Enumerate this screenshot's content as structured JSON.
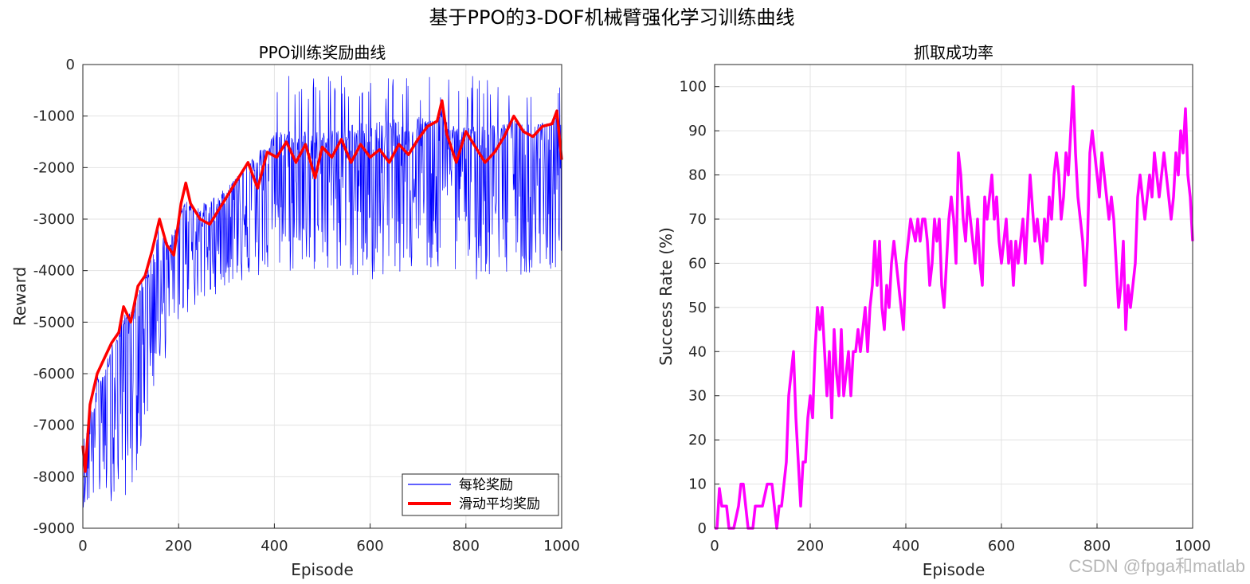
{
  "figure": {
    "title": "基于PPO的3-DOF机械臂强化学习训练曲线",
    "watermark": "CSDN @fpga和matlab"
  },
  "chart_data": [
    {
      "type": "line",
      "title": "PPO训练奖励曲线",
      "xlabel": "Episode",
      "ylabel": "Reward",
      "xlim": [
        0,
        1000
      ],
      "ylim": [
        -9000,
        0
      ],
      "xticks": [
        0,
        200,
        400,
        600,
        800,
        1000
      ],
      "yticks": [
        0,
        -1000,
        -2000,
        -3000,
        -4000,
        -5000,
        -6000,
        -7000,
        -8000,
        -9000
      ],
      "grid": true,
      "legend_position": "bottom-right",
      "series": [
        {
          "name": "每轮奖励",
          "color": "#0000ff",
          "style": "thin",
          "episodes": 1000,
          "noisy_around_trend_envelope": [
            [
              0,
              -7300,
              -8600
            ],
            [
              100,
              -4700,
              -8400
            ],
            [
              150,
              -4000,
              -6300
            ],
            [
              200,
              -3000,
              -5000
            ],
            [
              300,
              -2400,
              -4300
            ],
            [
              400,
              -1300,
              -4100
            ],
            [
              500,
              -1300,
              -4000
            ],
            [
              600,
              -1100,
              -4200
            ],
            [
              700,
              -1000,
              -4000
            ],
            [
              800,
              -1200,
              -4200
            ],
            [
              1000,
              -1100,
              -4000
            ]
          ]
        },
        {
          "name": "滑动平均奖励",
          "color": "#ff0000",
          "style": "thick",
          "x": [
            0,
            5,
            15,
            30,
            45,
            60,
            75,
            85,
            100,
            115,
            130,
            145,
            160,
            175,
            190,
            205,
            215,
            225,
            245,
            265,
            285,
            305,
            325,
            345,
            365,
            385,
            405,
            425,
            445,
            465,
            485,
            500,
            520,
            540,
            560,
            580,
            600,
            620,
            640,
            660,
            680,
            700,
            720,
            740,
            750,
            760,
            780,
            800,
            820,
            840,
            860,
            880,
            900,
            920,
            940,
            960,
            980,
            990,
            1000
          ],
          "y": [
            -7400,
            -7900,
            -6600,
            -6000,
            -5700,
            -5400,
            -5200,
            -4700,
            -5000,
            -4300,
            -4100,
            -3600,
            -3000,
            -3500,
            -3700,
            -2700,
            -2300,
            -2700,
            -3000,
            -3100,
            -2800,
            -2500,
            -2200,
            -1900,
            -2400,
            -1700,
            -1800,
            -1500,
            -1900,
            -1550,
            -2200,
            -1600,
            -1800,
            -1450,
            -1900,
            -1550,
            -1800,
            -1650,
            -1900,
            -1550,
            -1750,
            -1450,
            -1200,
            -1100,
            -700,
            -1350,
            -1900,
            -1300,
            -1600,
            -1900,
            -1700,
            -1400,
            -1000,
            -1300,
            -1400,
            -1200,
            -1150,
            -900,
            -1850
          ]
        }
      ]
    },
    {
      "type": "line",
      "title": "抓取成功率",
      "xlabel": "Episode",
      "ylabel": "Success Rate (%)",
      "xlim": [
        0,
        1000
      ],
      "ylim": [
        0,
        105
      ],
      "xticks": [
        0,
        200,
        400,
        600,
        800,
        1000
      ],
      "yticks": [
        0,
        10,
        20,
        30,
        40,
        50,
        60,
        70,
        80,
        90,
        100
      ],
      "grid": true,
      "series": [
        {
          "color": "#ff00ff",
          "style": "thick",
          "x": [
            0,
            5,
            10,
            15,
            25,
            30,
            40,
            50,
            55,
            60,
            65,
            70,
            80,
            85,
            90,
            100,
            110,
            120,
            125,
            130,
            135,
            140,
            150,
            155,
            160,
            165,
            170,
            175,
            180,
            185,
            190,
            195,
            200,
            205,
            210,
            215,
            220,
            225,
            230,
            235,
            240,
            245,
            250,
            255,
            260,
            265,
            270,
            275,
            280,
            285,
            290,
            295,
            300,
            305,
            310,
            315,
            320,
            325,
            330,
            335,
            340,
            345,
            350,
            355,
            360,
            365,
            370,
            375,
            380,
            385,
            390,
            395,
            400,
            410,
            420,
            425,
            430,
            435,
            440,
            445,
            450,
            455,
            460,
            465,
            470,
            475,
            480,
            485,
            490,
            495,
            500,
            505,
            510,
            515,
            520,
            525,
            530,
            535,
            540,
            545,
            550,
            555,
            560,
            565,
            570,
            575,
            580,
            585,
            590,
            595,
            600,
            605,
            610,
            615,
            620,
            625,
            630,
            635,
            640,
            645,
            650,
            660,
            670,
            675,
            680,
            685,
            690,
            695,
            700,
            705,
            710,
            715,
            720,
            725,
            730,
            735,
            740,
            745,
            750,
            755,
            760,
            765,
            770,
            775,
            780,
            785,
            790,
            795,
            800,
            805,
            810,
            815,
            820,
            825,
            830,
            835,
            840,
            845,
            850,
            855,
            860,
            865,
            870,
            875,
            880,
            885,
            890,
            895,
            900,
            905,
            910,
            915,
            920,
            925,
            930,
            935,
            940,
            945,
            950,
            955,
            960,
            965,
            970,
            975,
            980,
            985,
            990,
            995,
            1000
          ],
          "y": [
            0,
            0,
            9,
            5,
            5,
            0,
            0,
            5,
            10,
            10,
            5,
            0,
            0,
            5,
            5,
            5,
            10,
            10,
            5,
            0,
            5,
            5,
            15,
            30,
            35,
            40,
            25,
            15,
            5,
            15,
            15,
            25,
            30,
            25,
            40,
            50,
            45,
            50,
            40,
            30,
            40,
            25,
            45,
            35,
            30,
            45,
            30,
            35,
            40,
            30,
            40,
            40,
            45,
            40,
            45,
            50,
            40,
            50,
            55,
            65,
            55,
            65,
            50,
            45,
            55,
            50,
            60,
            65,
            60,
            55,
            50,
            45,
            60,
            70,
            65,
            70,
            65,
            70,
            70,
            65,
            55,
            60,
            70,
            65,
            70,
            55,
            50,
            60,
            70,
            75,
            70,
            60,
            85,
            80,
            70,
            65,
            75,
            70,
            65,
            60,
            70,
            60,
            55,
            75,
            70,
            75,
            80,
            70,
            75,
            65,
            60,
            65,
            70,
            60,
            65,
            55,
            65,
            60,
            65,
            70,
            60,
            80,
            65,
            70,
            65,
            60,
            70,
            65,
            75,
            70,
            80,
            85,
            80,
            70,
            75,
            85,
            80,
            90,
            100,
            85,
            75,
            70,
            65,
            55,
            65,
            85,
            90,
            85,
            80,
            75,
            85,
            80,
            75,
            70,
            75,
            70,
            60,
            50,
            55,
            65,
            45,
            55,
            50,
            55,
            60,
            75,
            80,
            75,
            70,
            75,
            80,
            75,
            85,
            80,
            75,
            80,
            85,
            80,
            75,
            70,
            75,
            85,
            80,
            90,
            85,
            95,
            80,
            75,
            65
          ]
        }
      ]
    }
  ]
}
